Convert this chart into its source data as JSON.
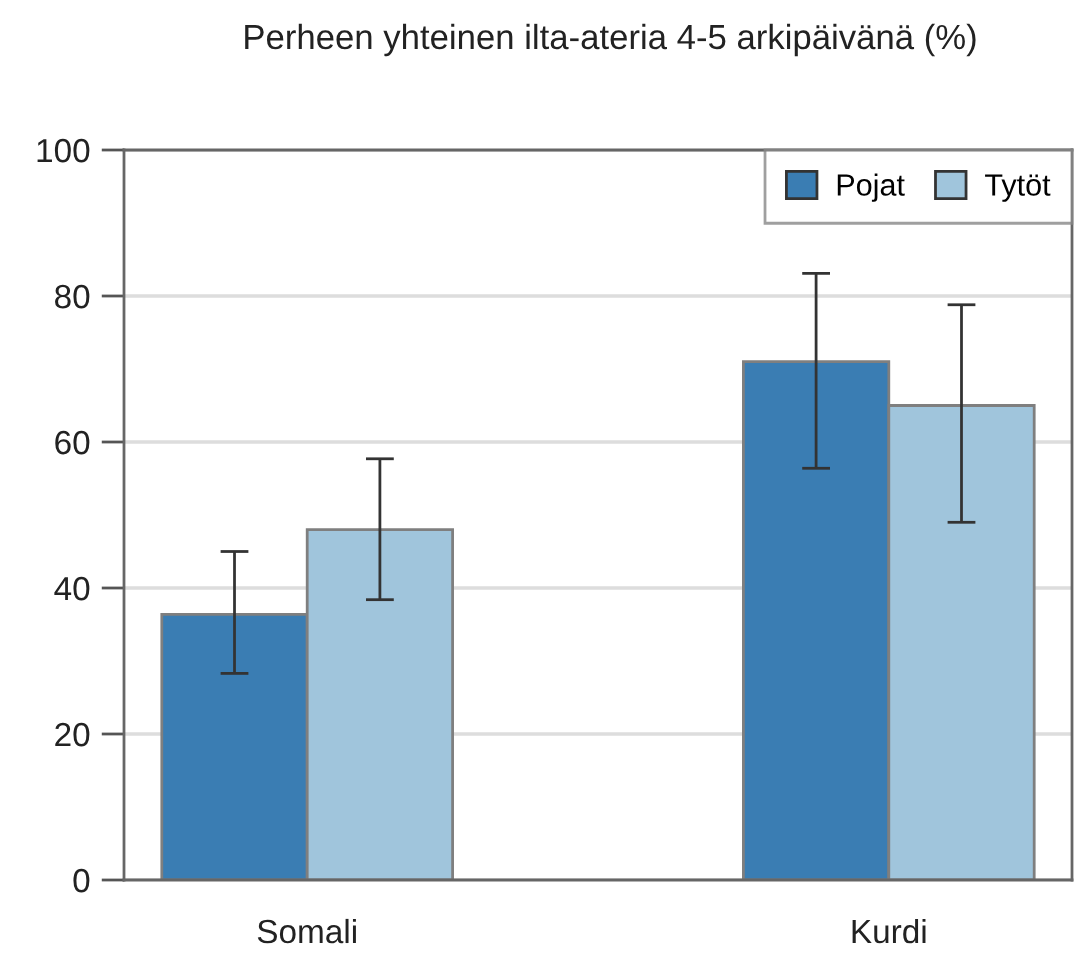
{
  "chart_data": {
    "type": "bar",
    "title": "Perheen yhteinen ilta-ateria 4-5 arkipäivänä (%)",
    "categories": [
      "Somali",
      "Kurdi"
    ],
    "series": [
      {
        "name": "Pojat",
        "color": "#3a7db3",
        "values": [
          36.4,
          71.0
        ],
        "errors": [
          [
            28.3,
            45.0
          ],
          [
            56.4,
            83.1
          ]
        ]
      },
      {
        "name": "Tytöt",
        "color": "#a0c5dc",
        "values": [
          48.0,
          65.0
        ],
        "errors": [
          [
            38.4,
            57.7
          ],
          [
            49.0,
            78.8
          ]
        ]
      }
    ],
    "ylim": [
      0,
      100
    ],
    "yticks": [
      0,
      20,
      40,
      60,
      80,
      100
    ],
    "grid": "y",
    "legend": "top right"
  }
}
